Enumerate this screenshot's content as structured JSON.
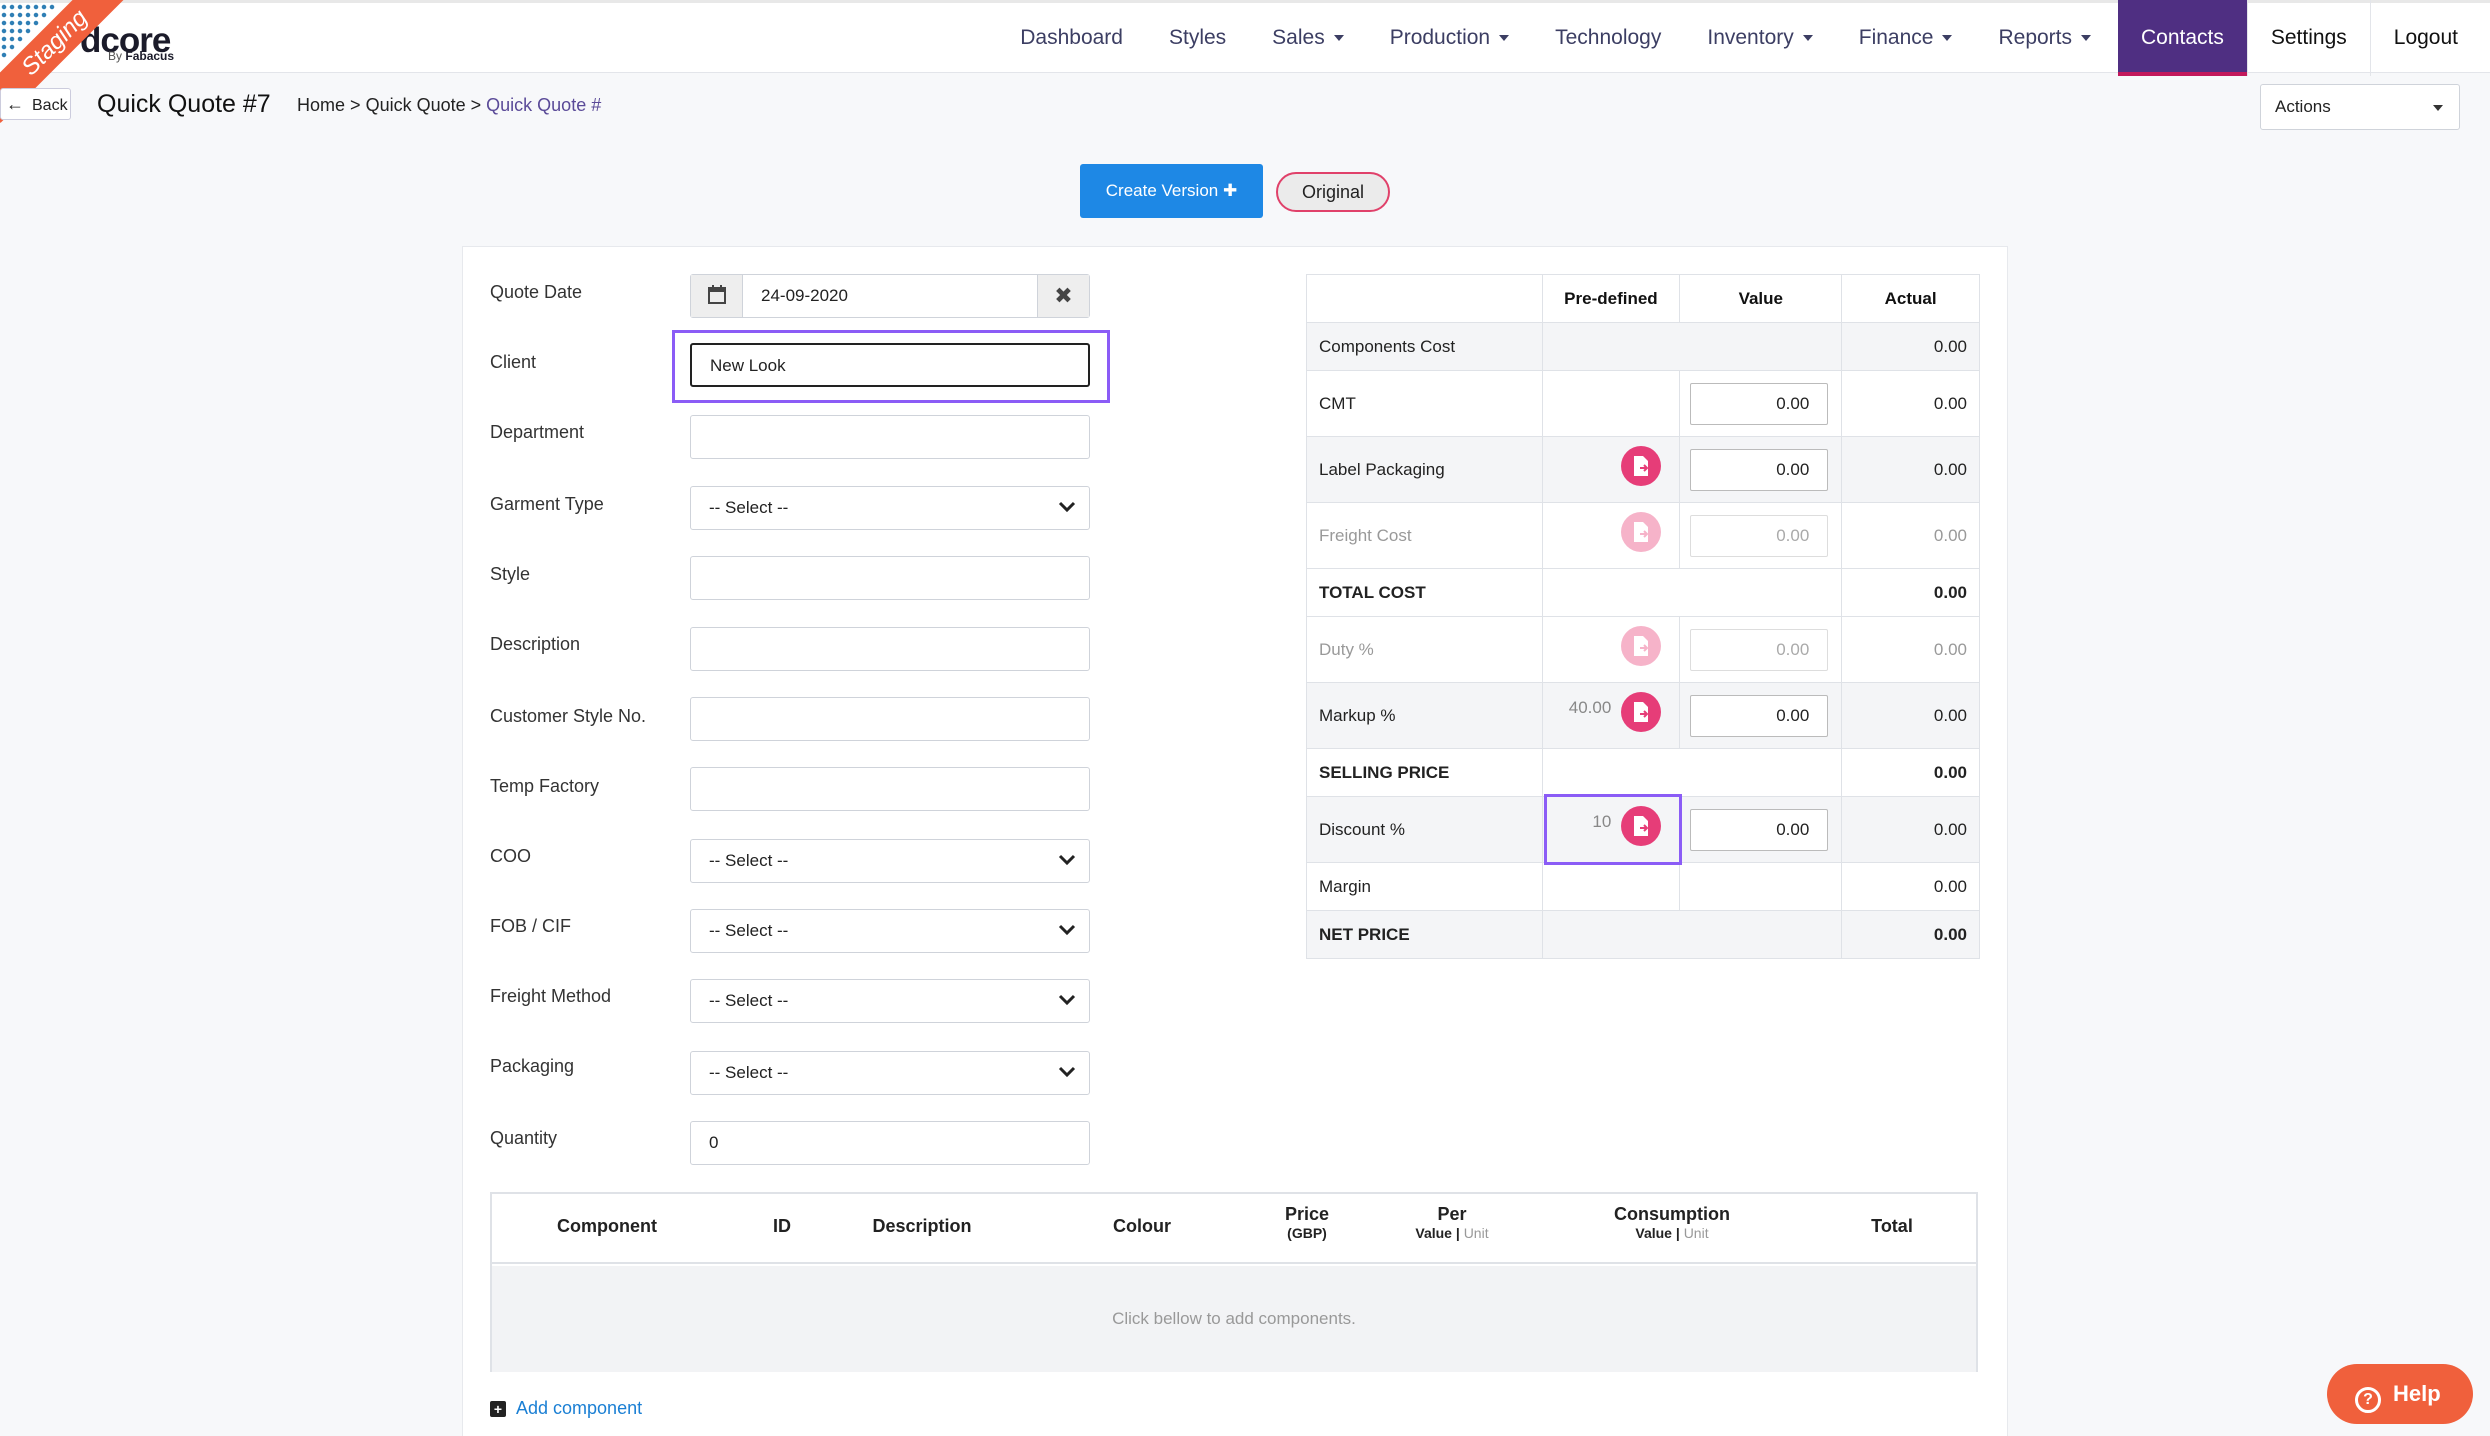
{
  "logo": {
    "brand": "dcore",
    "by": "By",
    "by_brand": "Fabacus",
    "ribbon": "Staging"
  },
  "nav": {
    "items": [
      {
        "label": "Dashboard",
        "caret": false
      },
      {
        "label": "Styles",
        "caret": false
      },
      {
        "label": "Sales",
        "caret": true
      },
      {
        "label": "Production",
        "caret": true
      },
      {
        "label": "Technology",
        "caret": false
      },
      {
        "label": "Inventory",
        "caret": true
      },
      {
        "label": "Finance",
        "caret": true
      },
      {
        "label": "Reports",
        "caret": true
      }
    ],
    "contacts": "Contacts",
    "settings": "Settings",
    "logout": "Logout"
  },
  "header": {
    "back": "Back",
    "title": "Quick Quote #7",
    "crumb_home": "Home",
    "crumb_sep": ">",
    "crumb_quick": "Quick Quote",
    "crumb_current": "Quick Quote #",
    "actions": "Actions"
  },
  "buttons": {
    "create_version": "Create Version",
    "original": "Original"
  },
  "form": {
    "quote_date_label": "Quote Date",
    "quote_date": "24-09-2020",
    "client_label": "Client",
    "client": "New Look",
    "department_label": "Department",
    "garment_label": "Garment Type",
    "style_label": "Style",
    "description_label": "Description",
    "cust_style_label": "Customer Style No.",
    "temp_factory_label": "Temp Factory",
    "coo_label": "COO",
    "fob_label": "FOB / CIF",
    "freight_method_label": "Freight Method",
    "packaging_label": "Packaging",
    "quantity_label": "Quantity",
    "quantity": "0",
    "select_placeholder": "-- Select --"
  },
  "cost": {
    "headers": {
      "predefined": "Pre-defined",
      "value": "Value",
      "actual": "Actual"
    },
    "rows": {
      "components": {
        "name": "Components Cost",
        "actual": "0.00"
      },
      "cmt": {
        "name": "CMT",
        "value": "0.00",
        "actual": "0.00"
      },
      "label_packaging": {
        "name": "Label Packaging",
        "value": "0.00",
        "actual": "0.00"
      },
      "freight": {
        "name": "Freight Cost",
        "value": "0.00",
        "actual": "0.00"
      },
      "total": {
        "name": "TOTAL COST",
        "actual": "0.00"
      },
      "duty": {
        "name": "Duty %",
        "value": "0.00",
        "actual": "0.00"
      },
      "markup": {
        "name": "Markup %",
        "predefined": "40.00",
        "value": "0.00",
        "actual": "0.00"
      },
      "selling": {
        "name": "SELLING PRICE",
        "actual": "0.00"
      },
      "discount": {
        "name": "Discount %",
        "predefined": "10",
        "value": "0.00",
        "actual": "0.00"
      },
      "margin": {
        "name": "Margin",
        "actual": "0.00"
      },
      "net": {
        "name": "NET PRICE",
        "actual": "0.00"
      }
    }
  },
  "components": {
    "component": "Component",
    "id": "ID",
    "description": "Description",
    "colour": "Colour",
    "price": "Price",
    "price_unit": "(GBP)",
    "per": "Per",
    "consumption": "Consumption",
    "value": "Value",
    "unit": "Unit",
    "total": "Total",
    "empty": "Click bellow to add components.",
    "add": "Add component"
  },
  "help": "Help",
  "colors": {
    "accent": "#4f2f82",
    "primary": "#1e88e5",
    "pink": "#e63d78",
    "highlight": "#8b5cf6"
  }
}
